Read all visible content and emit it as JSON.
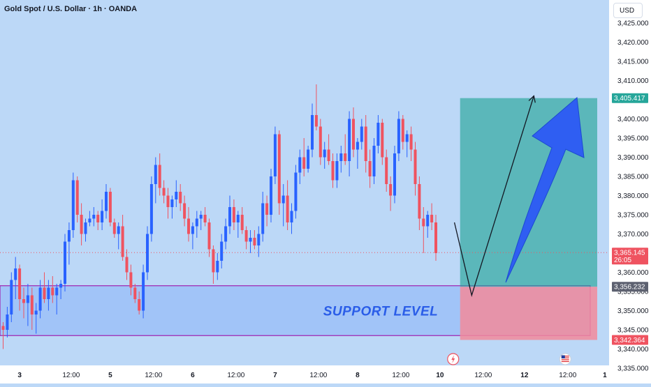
{
  "header": {
    "title": "Gold Spot / U.S. Dollar · 1h · OANDA"
  },
  "currency_button": {
    "label": "USD"
  },
  "colors": {
    "up": "#2962ff",
    "down": "#ef5360",
    "target_zone": "#26a69a",
    "stop_zone": "#f28b9b",
    "support_zone": "#98bdf8",
    "support_border": "#a020b0",
    "big_arrow": "#2f5ef2"
  },
  "chart_data": {
    "type": "candlestick",
    "symbol": "Gold Spot / U.S. Dollar",
    "interval": "1h",
    "source": "OANDA",
    "currency": "USD",
    "ylim": [
      3333,
      3428
    ],
    "y_ticks": [
      3335,
      3340,
      3345,
      3350,
      3355,
      3360,
      3365,
      3370,
      3375,
      3380,
      3385,
      3390,
      3395,
      3400,
      3405,
      3410,
      3415,
      3420,
      3425
    ],
    "y_tick_labels": [
      "3,335.000",
      "3,340.000",
      "3,345.000",
      "3,350.000",
      "3,355.000",
      "3,360.000",
      "3,365.000",
      "3,370.000",
      "3,375.000",
      "3,380.000",
      "3,385.000",
      "3,390.000",
      "3,395.000",
      "3,400.000",
      "3,405.000",
      "3,410.000",
      "3,415.000",
      "3,420.000",
      "3,425.000"
    ],
    "x_range": [
      0,
      146
    ],
    "x_ticks": [
      {
        "x": 4,
        "label": "3"
      },
      {
        "x": 16.5,
        "label": "12:00"
      },
      {
        "x": 26,
        "label": "5"
      },
      {
        "x": 36.5,
        "label": "12:00"
      },
      {
        "x": 46,
        "label": "6"
      },
      {
        "x": 56.5,
        "label": "12:00"
      },
      {
        "x": 66,
        "label": "7"
      },
      {
        "x": 76.5,
        "label": "12:00"
      },
      {
        "x": 86,
        "label": "8"
      },
      {
        "x": 96.5,
        "label": "12:00"
      },
      {
        "x": 106,
        "label": "10"
      },
      {
        "x": 116.5,
        "label": "12:00"
      },
      {
        "x": 126.5,
        "label": "12"
      },
      {
        "x": 137,
        "label": "12:00"
      },
      {
        "x": 146,
        "label": "1"
      }
    ],
    "candles": [
      [
        3346,
        3347,
        3340,
        3345
      ],
      [
        3345,
        3351,
        3343,
        3349
      ],
      [
        3349,
        3360,
        3347,
        3358
      ],
      [
        3358,
        3364,
        3353,
        3361
      ],
      [
        3361,
        3362,
        3350,
        3353
      ],
      [
        3353,
        3356,
        3348,
        3352
      ],
      [
        3352,
        3357,
        3346,
        3354
      ],
      [
        3354,
        3356,
        3345,
        3349
      ],
      [
        3349,
        3352,
        3344,
        3350
      ],
      [
        3350,
        3358,
        3348,
        3356
      ],
      [
        3356,
        3360,
        3352,
        3353
      ],
      [
        3353,
        3358,
        3350,
        3356
      ],
      [
        3356,
        3359,
        3352,
        3354
      ],
      [
        3354,
        3357,
        3349,
        3356
      ],
      [
        3356,
        3358,
        3353,
        3357
      ],
      [
        3357,
        3370,
        3355,
        3368
      ],
      [
        3368,
        3373,
        3362,
        3371
      ],
      [
        3371,
        3386,
        3369,
        3384
      ],
      [
        3384,
        3385,
        3373,
        3375
      ],
      [
        3375,
        3378,
        3367,
        3370
      ],
      [
        3370,
        3374,
        3368,
        3373
      ],
      [
        3373,
        3376,
        3372,
        3374
      ],
      [
        3374,
        3377,
        3372,
        3375
      ],
      [
        3375,
        3376,
        3371,
        3373
      ],
      [
        3373,
        3379,
        3371,
        3376
      ],
      [
        3376,
        3383,
        3374,
        3381
      ],
      [
        3381,
        3382,
        3372,
        3373
      ],
      [
        3373,
        3374,
        3369,
        3370
      ],
      [
        3370,
        3373,
        3366,
        3372
      ],
      [
        3372,
        3375,
        3363,
        3364
      ],
      [
        3364,
        3366,
        3358,
        3360
      ],
      [
        3360,
        3362,
        3354,
        3356
      ],
      [
        3356,
        3357,
        3352,
        3353
      ],
      [
        3353,
        3355,
        3349,
        3350
      ],
      [
        3350,
        3362,
        3348,
        3360
      ],
      [
        3360,
        3372,
        3358,
        3370
      ],
      [
        3370,
        3385,
        3368,
        3383
      ],
      [
        3383,
        3390,
        3378,
        3388
      ],
      [
        3388,
        3391,
        3380,
        3382
      ],
      [
        3382,
        3384,
        3378,
        3380
      ],
      [
        3380,
        3382,
        3374,
        3377
      ],
      [
        3377,
        3380,
        3374,
        3379
      ],
      [
        3379,
        3384,
        3377,
        3381
      ],
      [
        3381,
        3383,
        3376,
        3378
      ],
      [
        3378,
        3380,
        3372,
        3374
      ],
      [
        3374,
        3377,
        3368,
        3370
      ],
      [
        3370,
        3373,
        3366,
        3372
      ],
      [
        3372,
        3376,
        3369,
        3374
      ],
      [
        3374,
        3376,
        3371,
        3375
      ],
      [
        3375,
        3377,
        3372,
        3373
      ],
      [
        3373,
        3374,
        3364,
        3366
      ],
      [
        3366,
        3367,
        3357,
        3360
      ],
      [
        3360,
        3365,
        3358,
        3363
      ],
      [
        3363,
        3370,
        3361,
        3368
      ],
      [
        3368,
        3374,
        3366,
        3372
      ],
      [
        3372,
        3380,
        3370,
        3377
      ],
      [
        3377,
        3379,
        3371,
        3373
      ],
      [
        3373,
        3376,
        3369,
        3375
      ],
      [
        3375,
        3377,
        3370,
        3371
      ],
      [
        3371,
        3372,
        3366,
        3368
      ],
      [
        3368,
        3371,
        3365,
        3369
      ],
      [
        3369,
        3371,
        3366,
        3367
      ],
      [
        3367,
        3372,
        3364,
        3370
      ],
      [
        3370,
        3381,
        3368,
        3378
      ],
      [
        3378,
        3380,
        3372,
        3375
      ],
      [
        3375,
        3387,
        3373,
        3385
      ],
      [
        3385,
        3398,
        3383,
        3396
      ],
      [
        3396,
        3397,
        3375,
        3378
      ],
      [
        3378,
        3383,
        3372,
        3380
      ],
      [
        3380,
        3384,
        3371,
        3373
      ],
      [
        3373,
        3378,
        3370,
        3376
      ],
      [
        3376,
        3388,
        3374,
        3386
      ],
      [
        3386,
        3392,
        3383,
        3390
      ],
      [
        3390,
        3395,
        3385,
        3387
      ],
      [
        3387,
        3393,
        3386,
        3392
      ],
      [
        3392,
        3404,
        3390,
        3401
      ],
      [
        3401,
        3409,
        3397,
        3398
      ],
      [
        3398,
        3400,
        3388,
        3390
      ],
      [
        3390,
        3394,
        3387,
        3392
      ],
      [
        3392,
        3396,
        3388,
        3389
      ],
      [
        3389,
        3391,
        3382,
        3384
      ],
      [
        3384,
        3391,
        3382,
        3389
      ],
      [
        3389,
        3393,
        3386,
        3391
      ],
      [
        3391,
        3396,
        3388,
        3389
      ],
      [
        3389,
        3402,
        3385,
        3400
      ],
      [
        3400,
        3403,
        3390,
        3392
      ],
      [
        3392,
        3395,
        3387,
        3394
      ],
      [
        3394,
        3400,
        3392,
        3398
      ],
      [
        3398,
        3401,
        3386,
        3389
      ],
      [
        3389,
        3392,
        3382,
        3385
      ],
      [
        3385,
        3395,
        3383,
        3393
      ],
      [
        3393,
        3401,
        3391,
        3399
      ],
      [
        3399,
        3400,
        3388,
        3390
      ],
      [
        3390,
        3392,
        3381,
        3383
      ],
      [
        3383,
        3385,
        3376,
        3380
      ],
      [
        3380,
        3393,
        3378,
        3391
      ],
      [
        3391,
        3402,
        3389,
        3400
      ],
      [
        3400,
        3401,
        3392,
        3394
      ],
      [
        3394,
        3397,
        3390,
        3396
      ],
      [
        3396,
        3398,
        3389,
        3392
      ],
      [
        3392,
        3394,
        3380,
        3383
      ],
      [
        3383,
        3385,
        3371,
        3374
      ],
      [
        3374,
        3377,
        3365,
        3372
      ],
      [
        3372,
        3376,
        3369,
        3375
      ],
      [
        3375,
        3378,
        3371,
        3373
      ],
      [
        3373,
        3375,
        3363,
        3365
      ]
    ],
    "annotations": {
      "support_zone": {
        "x_start": 0,
        "x_end": 146,
        "y_low": 3343.5,
        "y_high": 3356.5,
        "label": "SUPPORT LEVEL"
      },
      "position": {
        "x_start": 108,
        "x_end": 144,
        "entry": 3356.232,
        "target": 3405.417,
        "stop": 3342.364
      },
      "projection_path": [
        [
          109.5,
          3373
        ],
        [
          112,
          3354
        ],
        [
          122,
          3406
        ]
      ],
      "current_price": 3365.145
    },
    "price_badges": [
      {
        "value": 3405.417,
        "label": "3,405.417",
        "color": "#26a69a"
      },
      {
        "value": 3365.145,
        "label": "3,365.145",
        "sublabel": "26:05",
        "color": "#ef5360"
      },
      {
        "value": 3356.232,
        "label": "3,356.232",
        "color": "#5d6170"
      },
      {
        "value": 3342.364,
        "label": "3,342.364",
        "color": "#ef5360"
      }
    ],
    "event_markers": [
      {
        "x": 107.5,
        "icon": "lightning-icon"
      },
      {
        "x": 132.5,
        "icon": "us-flag-icon"
      }
    ]
  }
}
